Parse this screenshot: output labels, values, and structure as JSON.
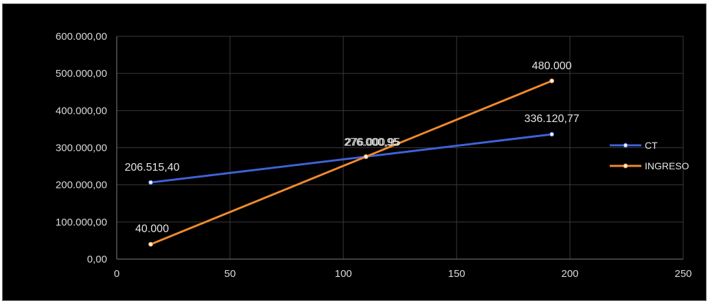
{
  "chart_data": {
    "type": "line",
    "title": "",
    "xlabel": "",
    "ylabel": "",
    "xlim": [
      0,
      250
    ],
    "ylim": [
      0,
      600000
    ],
    "x_ticks": [
      0,
      50,
      100,
      150,
      200,
      250
    ],
    "x_tick_labels": [
      "0",
      "50",
      "100",
      "150",
      "200",
      "250"
    ],
    "y_ticks": [
      0,
      100000,
      200000,
      300000,
      400000,
      500000,
      600000
    ],
    "y_tick_labels": [
      "0,00",
      "100.000,00",
      "200.000,00",
      "300.000,00",
      "400.000,00",
      "500.000,00",
      "600.000,00"
    ],
    "grid": true,
    "legend_position": "right",
    "series": [
      {
        "name": "CT",
        "color": "#3f63d8",
        "points": [
          {
            "x": 15,
            "y": 206515.4,
            "label": "206.515,40"
          },
          {
            "x": 110,
            "y": 276000,
            "label": "276.000,95"
          },
          {
            "x": 192,
            "y": 336120.77,
            "label": "336.120,77"
          }
        ]
      },
      {
        "name": "INGRESO",
        "color": "#f08a2c",
        "points": [
          {
            "x": 15,
            "y": 40000,
            "label": "40.000"
          },
          {
            "x": 110,
            "y": 276000,
            "label": "276.000,95"
          },
          {
            "x": 192,
            "y": 480000,
            "label": "480.000"
          }
        ]
      }
    ]
  }
}
